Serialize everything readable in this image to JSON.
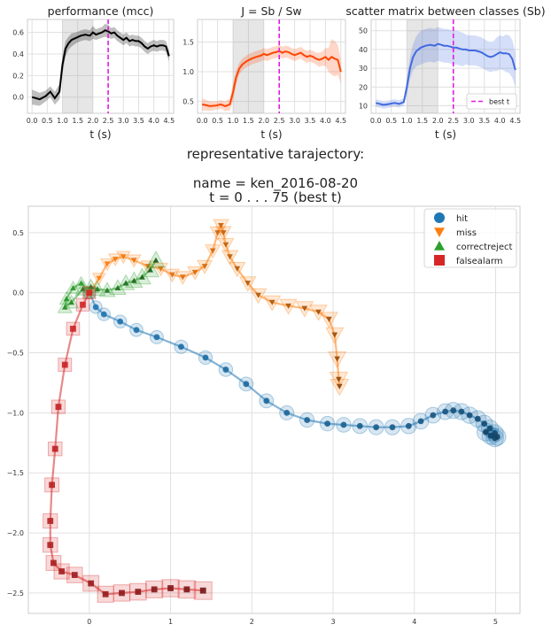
{
  "suptitle": {
    "line1": "representative tarajectory:",
    "line2": "name = ken_2016-08-20",
    "line3": "t = 0 . . .  75 (best t)"
  },
  "chart_data": [
    {
      "type": "line",
      "title": "performance (mcc)",
      "xlabel": "t (s)",
      "ylabel": "",
      "xlim": [
        -0.15,
        4.65
      ],
      "ylim": [
        -0.15,
        0.72
      ],
      "xticks": [
        "0.0",
        "0.5",
        "1.0",
        "1.5",
        "2.0",
        "2.5",
        "3.0",
        "3.5",
        "4.0",
        "4.5"
      ],
      "yticks": [
        "0.0",
        "0.2",
        "0.4",
        "0.6"
      ],
      "shaded_interval": [
        1.0,
        2.0
      ],
      "best_t": 2.5,
      "line_color": "#000000",
      "x": [
        0.0,
        0.25,
        0.45,
        0.6,
        0.75,
        0.9,
        1.0,
        1.1,
        1.2,
        1.3,
        1.45,
        1.6,
        1.75,
        1.9,
        2.0,
        2.1,
        2.2,
        2.3,
        2.4,
        2.5,
        2.6,
        2.7,
        2.8,
        2.9,
        3.0,
        3.1,
        3.2,
        3.3,
        3.4,
        3.5,
        3.6,
        3.7,
        3.8,
        3.9,
        4.0,
        4.1,
        4.2,
        4.3,
        4.4,
        4.5
      ],
      "y": [
        0.0,
        -0.02,
        0.01,
        0.05,
        -0.01,
        0.05,
        0.3,
        0.45,
        0.5,
        0.53,
        0.55,
        0.57,
        0.58,
        0.57,
        0.6,
        0.58,
        0.59,
        0.6,
        0.62,
        0.61,
        0.59,
        0.6,
        0.57,
        0.55,
        0.53,
        0.55,
        0.52,
        0.53,
        0.52,
        0.52,
        0.5,
        0.47,
        0.45,
        0.47,
        0.48,
        0.47,
        0.48,
        0.48,
        0.47,
        0.38
      ],
      "band": [
        0.07,
        0.06,
        0.05,
        0.05,
        0.06,
        0.07,
        0.08,
        0.07,
        0.06,
        0.06,
        0.05,
        0.05,
        0.05,
        0.05,
        0.06,
        0.05,
        0.05,
        0.05,
        0.06,
        0.06,
        0.05,
        0.05,
        0.05,
        0.05,
        0.05,
        0.05,
        0.05,
        0.05,
        0.05,
        0.05,
        0.05,
        0.05,
        0.05,
        0.05,
        0.05,
        0.05,
        0.05,
        0.05,
        0.05,
        0.05
      ]
    },
    {
      "type": "line",
      "title": "J = Sb / Sw",
      "xlabel": "t (s)",
      "ylabel": "",
      "xlim": [
        -0.15,
        4.65
      ],
      "ylim": [
        0.3,
        1.88
      ],
      "xticks": [
        "0.0",
        "0.5",
        "1.0",
        "1.5",
        "2.0",
        "2.5",
        "3.0",
        "3.5",
        "4.0",
        "4.5"
      ],
      "yticks": [
        "0.5",
        "1.0",
        "1.5"
      ],
      "shaded_interval": [
        1.0,
        2.0
      ],
      "best_t": 2.5,
      "line_color": "#ff4500",
      "x": [
        0.0,
        0.25,
        0.45,
        0.6,
        0.75,
        0.9,
        1.0,
        1.1,
        1.2,
        1.3,
        1.45,
        1.6,
        1.75,
        1.9,
        2.0,
        2.1,
        2.2,
        2.3,
        2.4,
        2.5,
        2.6,
        2.7,
        2.8,
        2.9,
        3.0,
        3.1,
        3.2,
        3.3,
        3.4,
        3.5,
        3.6,
        3.7,
        3.8,
        3.9,
        4.0,
        4.1,
        4.2,
        4.3,
        4.4,
        4.5
      ],
      "y": [
        0.45,
        0.42,
        0.43,
        0.45,
        0.42,
        0.45,
        0.65,
        0.9,
        1.05,
        1.12,
        1.18,
        1.22,
        1.25,
        1.27,
        1.3,
        1.28,
        1.3,
        1.32,
        1.33,
        1.35,
        1.32,
        1.34,
        1.33,
        1.3,
        1.28,
        1.3,
        1.32,
        1.28,
        1.25,
        1.27,
        1.25,
        1.22,
        1.2,
        1.22,
        1.25,
        1.2,
        1.25,
        1.22,
        1.2,
        1.0
      ],
      "band": [
        0.1,
        0.08,
        0.07,
        0.07,
        0.08,
        0.1,
        0.15,
        0.12,
        0.1,
        0.1,
        0.1,
        0.1,
        0.1,
        0.1,
        0.1,
        0.1,
        0.1,
        0.1,
        0.1,
        0.1,
        0.1,
        0.1,
        0.1,
        0.1,
        0.1,
        0.1,
        0.1,
        0.1,
        0.1,
        0.1,
        0.1,
        0.1,
        0.12,
        0.12,
        0.15,
        0.2,
        0.3,
        0.3,
        0.25,
        0.2
      ]
    },
    {
      "type": "line",
      "title": "scatter matrix between classes (Sb)",
      "xlabel": "t (s)",
      "ylabel": "",
      "xlim": [
        -0.15,
        4.65
      ],
      "ylim": [
        6,
        56
      ],
      "xticks": [
        "0.0",
        "0.5",
        "1.0",
        "1.5",
        "2.0",
        "2.5",
        "3.0",
        "3.5",
        "4.0",
        "4.5"
      ],
      "yticks": [
        "10",
        "20",
        "30",
        "40",
        "50"
      ],
      "shaded_interval": [
        1.0,
        2.0
      ],
      "best_t": 2.5,
      "line_color": "#4169e1",
      "legend": [
        "best t"
      ],
      "x": [
        0.0,
        0.25,
        0.45,
        0.6,
        0.75,
        0.9,
        1.0,
        1.1,
        1.2,
        1.3,
        1.45,
        1.6,
        1.75,
        1.9,
        2.0,
        2.1,
        2.2,
        2.3,
        2.4,
        2.5,
        2.6,
        2.7,
        2.8,
        2.9,
        3.0,
        3.1,
        3.2,
        3.3,
        3.4,
        3.5,
        3.6,
        3.7,
        3.8,
        3.9,
        4.0,
        4.1,
        4.2,
        4.3,
        4.4,
        4.5
      ],
      "y": [
        11.5,
        10.5,
        11.0,
        11.5,
        11.0,
        12.0,
        20.0,
        30.0,
        36.0,
        39.0,
        41.0,
        42.0,
        42.5,
        42.0,
        43.0,
        42.5,
        42.0,
        42.0,
        41.5,
        41.0,
        41.0,
        40.5,
        40.0,
        40.0,
        39.5,
        39.5,
        39.5,
        39.0,
        38.5,
        37.5,
        36.5,
        36.0,
        36.5,
        37.5,
        38.5,
        38.0,
        38.0,
        37.5,
        35.0,
        29.0
      ],
      "band": [
        2,
        2,
        2,
        2,
        2,
        2,
        4,
        6,
        7,
        8,
        9,
        9,
        9,
        9,
        9,
        9,
        9,
        9,
        9,
        9,
        9,
        9,
        9,
        8,
        8,
        8,
        8,
        8,
        8,
        8,
        8,
        8,
        8,
        9,
        9,
        9,
        10,
        10,
        10,
        9
      ]
    },
    {
      "type": "scatter",
      "title": "",
      "xlabel": "",
      "ylabel": "",
      "xlim": [
        -0.75,
        5.3
      ],
      "ylim": [
        -2.67,
        0.72
      ],
      "xticks": [
        "0",
        "1",
        "2",
        "3",
        "4",
        "5"
      ],
      "yticks": [
        "0.5",
        "0.0",
        "−0.5",
        "−1.0",
        "−1.5",
        "−2.0",
        "−2.5"
      ],
      "legend_position": "top-right",
      "series": [
        {
          "name": "hit",
          "marker": "circle",
          "color": "#1f77b4",
          "x": [
            0.0,
            0.08,
            0.18,
            0.38,
            0.58,
            0.83,
            1.13,
            1.43,
            1.68,
            1.93,
            2.18,
            2.43,
            2.68,
            2.93,
            3.13,
            3.33,
            3.53,
            3.73,
            3.93,
            4.08,
            4.23,
            4.38,
            4.48,
            4.58,
            4.68,
            4.78,
            4.86,
            4.93,
            4.99,
            5.02,
            4.99,
            4.94,
            4.88
          ],
          "y": [
            0.0,
            -0.12,
            -0.18,
            -0.24,
            -0.31,
            -0.37,
            -0.45,
            -0.54,
            -0.64,
            -0.76,
            -0.9,
            -1.0,
            -1.06,
            -1.09,
            -1.1,
            -1.11,
            -1.12,
            -1.12,
            -1.11,
            -1.07,
            -1.02,
            -0.99,
            -0.98,
            -0.99,
            -1.02,
            -1.05,
            -1.09,
            -1.13,
            -1.17,
            -1.2,
            -1.21,
            -1.19,
            -1.16
          ]
        },
        {
          "name": "miss",
          "marker": "triangle-down",
          "color": "#ff7f0e",
          "x": [
            0.0,
            0.12,
            0.22,
            0.32,
            0.42,
            0.55,
            0.72,
            0.88,
            1.02,
            1.15,
            1.3,
            1.42,
            1.52,
            1.58,
            1.62,
            1.65,
            1.68,
            1.73,
            1.82,
            1.95,
            2.08,
            2.25,
            2.45,
            2.65,
            2.82,
            2.95,
            3.02,
            3.05,
            3.07,
            3.08
          ],
          "y": [
            0.0,
            0.12,
            0.24,
            0.28,
            0.3,
            0.27,
            0.22,
            0.2,
            0.15,
            0.13,
            0.17,
            0.22,
            0.35,
            0.5,
            0.56,
            0.5,
            0.4,
            0.3,
            0.2,
            0.08,
            -0.02,
            -0.08,
            -0.11,
            -0.13,
            -0.16,
            -0.22,
            -0.35,
            -0.55,
            -0.72,
            -0.78
          ]
        },
        {
          "name": "correctreject",
          "marker": "triangle-up",
          "color": "#2ca02c",
          "x": [
            0.0,
            -0.1,
            -0.2,
            -0.28,
            -0.3,
            -0.22,
            -0.08,
            0.02,
            0.1,
            0.22,
            0.35,
            0.45,
            0.55,
            0.65,
            0.75,
            0.82
          ],
          "y": [
            0.0,
            0.08,
            0.04,
            -0.05,
            -0.12,
            -0.08,
            0.03,
            0.05,
            0.03,
            0.02,
            0.04,
            0.08,
            0.1,
            0.13,
            0.19,
            0.27
          ]
        },
        {
          "name": "falsealarm",
          "marker": "square",
          "color": "#d62728",
          "x": [
            0.0,
            -0.08,
            -0.2,
            -0.3,
            -0.38,
            -0.42,
            -0.46,
            -0.48,
            -0.48,
            -0.44,
            -0.34,
            -0.18,
            0.02,
            0.2,
            0.4,
            0.6,
            0.8,
            1.0,
            1.2,
            1.4
          ],
          "y": [
            0.0,
            -0.1,
            -0.3,
            -0.6,
            -0.95,
            -1.3,
            -1.6,
            -1.9,
            -2.1,
            -2.25,
            -2.32,
            -2.35,
            -2.42,
            -2.51,
            -2.5,
            -2.49,
            -2.47,
            -2.46,
            -2.47,
            -2.48
          ]
        }
      ]
    }
  ]
}
